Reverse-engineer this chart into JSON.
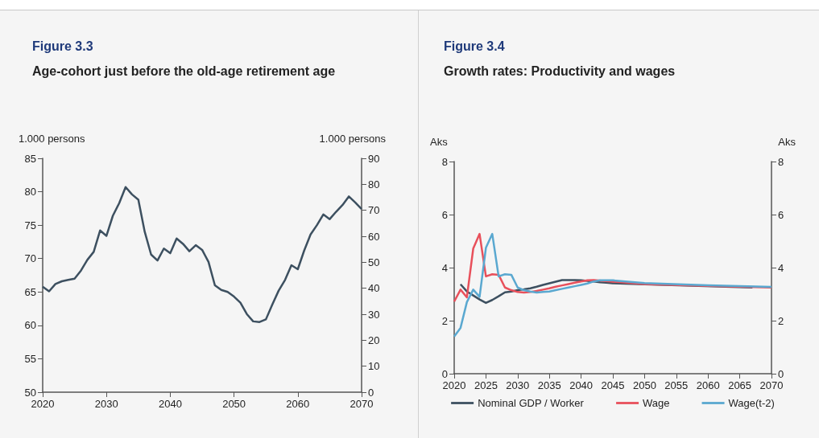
{
  "chart_data": [
    {
      "type": "line",
      "title": "Figure 3.3",
      "subtitle": "Age-cohort just before the old-age retirement age",
      "ylabel": "1.000 persons",
      "y2label": "1.000 persons",
      "x": [
        2020,
        2021,
        2022,
        2023,
        2024,
        2025,
        2026,
        2027,
        2028,
        2029,
        2030,
        2031,
        2032,
        2033,
        2034,
        2035,
        2036,
        2037,
        2038,
        2039,
        2040,
        2041,
        2042,
        2043,
        2044,
        2045,
        2046,
        2047,
        2048,
        2049,
        2050,
        2051,
        2052,
        2053,
        2054,
        2055,
        2056,
        2057,
        2058,
        2059,
        2060,
        2061,
        2062,
        2063,
        2064,
        2065,
        2066,
        2067,
        2068,
        2069,
        2070
      ],
      "series": [
        {
          "color": "#3d5060",
          "values": [
            65.8,
            65.1,
            66.2,
            66.6,
            66.8,
            67.0,
            68.2,
            69.8,
            71.0,
            74.2,
            73.4,
            76.4,
            78.3,
            80.7,
            79.6,
            78.8,
            74.0,
            70.6,
            69.7,
            71.5,
            70.8,
            73.0,
            72.2,
            71.1,
            72.0,
            71.3,
            69.5,
            66.0,
            65.3,
            65.0,
            64.3,
            63.4,
            61.7,
            60.6,
            60.5,
            60.9,
            63.1,
            65.2,
            66.8,
            69.0,
            68.4,
            71.2,
            73.6,
            75.0,
            76.6,
            75.9,
            77.0,
            78.0,
            79.3,
            78.4,
            77.4
          ]
        }
      ],
      "xlim": [
        2020,
        2070
      ],
      "xticks": [
        2020,
        2030,
        2040,
        2050,
        2060,
        2070
      ],
      "ylim": [
        50,
        85
      ],
      "yticks": [
        50,
        55,
        60,
        65,
        70,
        75,
        80,
        85
      ],
      "y2lim": [
        0,
        90
      ],
      "y2ticks": [
        0,
        10,
        20,
        30,
        40,
        50,
        60,
        70,
        80,
        90
      ],
      "legend": false,
      "marker": "none",
      "line_style": "solid"
    },
    {
      "type": "line",
      "title": "Figure 3.4",
      "subtitle": "Growth rates: Productivity and wages",
      "ylabel": "Aks",
      "y2label": "Aks",
      "series": [
        {
          "name": "Nominal GDP / Worker",
          "color": "#3d5060",
          "x": [
            2021,
            2022,
            2023,
            2024,
            2025,
            2026,
            2027,
            2028,
            2029,
            2030,
            2031,
            2032,
            2033,
            2034,
            2035,
            2036,
            2037,
            2038,
            2039,
            2040,
            2041,
            2042,
            2043,
            2044,
            2045,
            2050,
            2067
          ],
          "values": [
            3.37,
            3.1,
            2.95,
            2.8,
            2.67,
            2.78,
            2.92,
            3.07,
            3.1,
            3.15,
            3.18,
            3.22,
            3.28,
            3.35,
            3.41,
            3.47,
            3.53,
            3.53,
            3.53,
            3.52,
            3.5,
            3.48,
            3.45,
            3.43,
            3.41,
            3.37,
            3.25
          ]
        },
        {
          "name": "Wage",
          "color": "#e8505b",
          "x": [
            2020,
            2021,
            2022,
            2023,
            2024,
            2025,
            2026,
            2027,
            2028,
            2029,
            2030,
            2031,
            2032,
            2033,
            2034,
            2035,
            2036,
            2037,
            2038,
            2039,
            2040,
            2041,
            2042,
            2045,
            2050,
            2060,
            2070
          ],
          "values": [
            2.72,
            3.17,
            2.88,
            4.72,
            5.27,
            3.67,
            3.75,
            3.73,
            3.25,
            3.15,
            3.08,
            3.06,
            3.08,
            3.12,
            3.17,
            3.22,
            3.28,
            3.33,
            3.38,
            3.43,
            3.48,
            3.52,
            3.53,
            3.47,
            3.38,
            3.31,
            3.25
          ]
        },
        {
          "name": "Wage(t-2)",
          "color": "#5aa8d0",
          "x": [
            2020,
            2021,
            2022,
            2023,
            2024,
            2025,
            2026,
            2027,
            2028,
            2029,
            2030,
            2031,
            2032,
            2033,
            2034,
            2035,
            2036,
            2037,
            2038,
            2039,
            2040,
            2041,
            2042,
            2043,
            2044,
            2045,
            2050,
            2060,
            2070
          ],
          "values": [
            1.4,
            1.73,
            2.7,
            3.17,
            2.9,
            4.75,
            5.27,
            3.67,
            3.75,
            3.73,
            3.25,
            3.15,
            3.1,
            3.06,
            3.08,
            3.1,
            3.15,
            3.2,
            3.25,
            3.3,
            3.35,
            3.4,
            3.48,
            3.52,
            3.52,
            3.52,
            3.42,
            3.33,
            3.27
          ]
        }
      ],
      "xlim": [
        2020,
        2070
      ],
      "xticks": [
        2020,
        2025,
        2030,
        2035,
        2040,
        2045,
        2050,
        2055,
        2060,
        2065,
        2070
      ],
      "ylim": [
        0,
        8
      ],
      "yticks": [
        0,
        2,
        4,
        6,
        8
      ],
      "y2lim": [
        0,
        8
      ],
      "y2ticks": [
        0,
        2,
        4,
        6,
        8
      ],
      "legend": "bottom",
      "marker": "none",
      "line_style": "solid"
    }
  ]
}
